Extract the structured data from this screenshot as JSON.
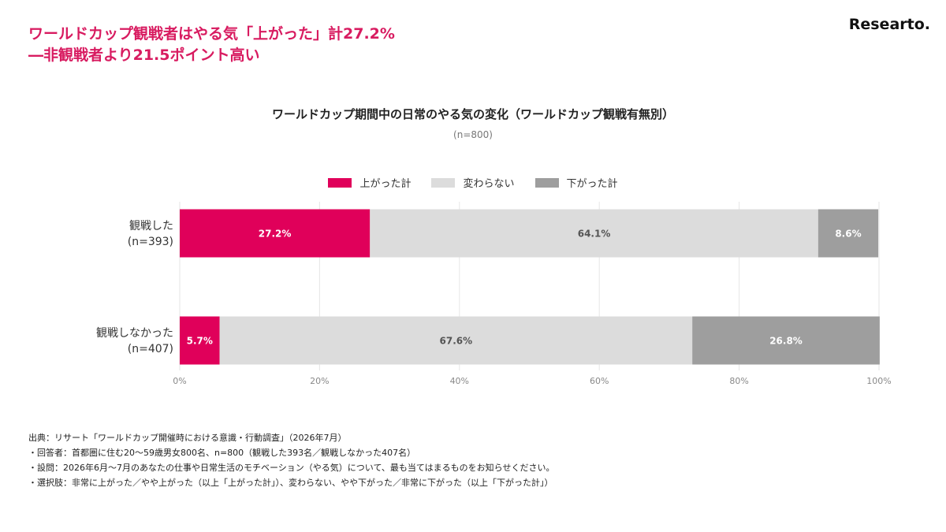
{
  "header": {
    "headline_line1": "ワールドカップ観戦者はやる気「上がった」計27.2%",
    "headline_line2": "―非観戦者より21.5ポイント高い",
    "brand": "Researto."
  },
  "chart_data": {
    "type": "bar",
    "orientation": "horizontal",
    "stacked": true,
    "title": "ワールドカップ期間中の日常のやる気の変化（ワールドカップ観戦有無別）",
    "subtitle": "(n=800)",
    "categories": [
      {
        "label": "観戦した",
        "n": "(n=393)"
      },
      {
        "label": "観戦しなかった",
        "n": "(n=407)"
      }
    ],
    "series": [
      {
        "name": "上がった計",
        "color": "#e0005a",
        "label_color": "#ffffff",
        "values": [
          27.2,
          5.7
        ]
      },
      {
        "name": "変わらない",
        "color": "#dcdcdc",
        "label_color": "#555555",
        "values": [
          64.1,
          67.6
        ]
      },
      {
        "name": "下がった計",
        "color": "#9e9e9e",
        "label_color": "#ffffff",
        "values": [
          8.6,
          26.8
        ]
      }
    ],
    "xlim": [
      0,
      100
    ],
    "x_ticks": [
      "0%",
      "20%",
      "40%",
      "60%",
      "80%",
      "100%"
    ],
    "value_suffix": "%",
    "legend_position": "top-center",
    "grid": true
  },
  "notes": [
    "出典：リサート「ワールドカップ開催時における意識・行動調査」（2026年7月）",
    "・回答者：首都圏に住む20～59歳男女800名、n=800（観戦した393名／観戦しなかった407名）",
    "・設問：2026年6月～7月のあなたの仕事や日常生活のモチベーション（やる気）について、最も当てはまるものをお知らせください。",
    "・選択肢：非常に上がった／やや上がった（以上「上がった計」）、変わらない、やや下がった／非常に下がった（以上「下がった計」）"
  ]
}
